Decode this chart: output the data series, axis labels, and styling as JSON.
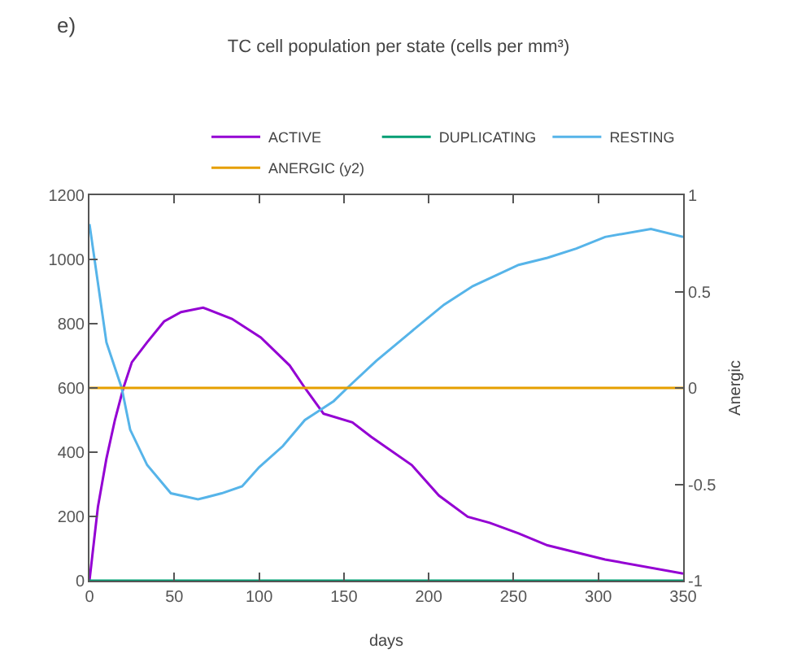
{
  "chart_data": {
    "type": "line",
    "title": "TC cell population per state (cells per mm³)",
    "xlabel": "days",
    "y2label": "Anergic",
    "annotations": [
      "e)"
    ],
    "xlim": [
      0,
      350
    ],
    "xticks": [
      0,
      50,
      100,
      150,
      200,
      250,
      300,
      350
    ],
    "ylim": [
      0,
      1200
    ],
    "yticks": [
      0,
      200,
      400,
      600,
      800,
      1000,
      1200
    ],
    "y2lim": [
      -1,
      1
    ],
    "y2ticks": [
      -1,
      -0.5,
      0,
      0.5,
      1
    ],
    "grid": false,
    "legend": "top right",
    "marker": "none",
    "line_style": "solid",
    "series": [
      {
        "name": "ACTIVE",
        "color": "#9400d3",
        "x": [
          0,
          5,
          10,
          15,
          20,
          25,
          34,
          44,
          54,
          67,
          84,
          101,
          118,
          127,
          138,
          155,
          166,
          190,
          206,
          223,
          236,
          253,
          270,
          304,
          350
        ],
        "values": [
          0,
          230,
          380,
          500,
          600,
          680,
          742,
          807,
          836,
          850,
          815,
          757,
          670,
          600,
          520,
          493,
          448,
          360,
          265,
          199,
          180,
          147,
          110,
          66,
          22
        ]
      },
      {
        "name": "DUPLICATING",
        "color": "#009e73",
        "x": [
          0,
          350
        ],
        "values": [
          0,
          0
        ]
      },
      {
        "name": "RESTING",
        "color": "#56b4e9",
        "x": [
          0,
          10,
          19,
          24,
          34,
          48,
          64,
          78,
          90,
          100,
          114,
          127,
          144,
          153,
          169,
          189,
          209,
          226,
          253,
          270,
          287,
          304,
          331,
          350
        ],
        "values": [
          1110,
          742,
          600,
          470,
          360,
          272,
          253,
          272,
          294,
          353,
          419,
          500,
          559,
          605,
          684,
          772,
          859,
          917,
          983,
          1005,
          1034,
          1070,
          1095,
          1070
        ]
      },
      {
        "name": "ANERGIC (y2)",
        "color": "#e69f00",
        "axis": "y2",
        "x": [
          0,
          350
        ],
        "values": [
          0,
          0
        ]
      }
    ]
  }
}
